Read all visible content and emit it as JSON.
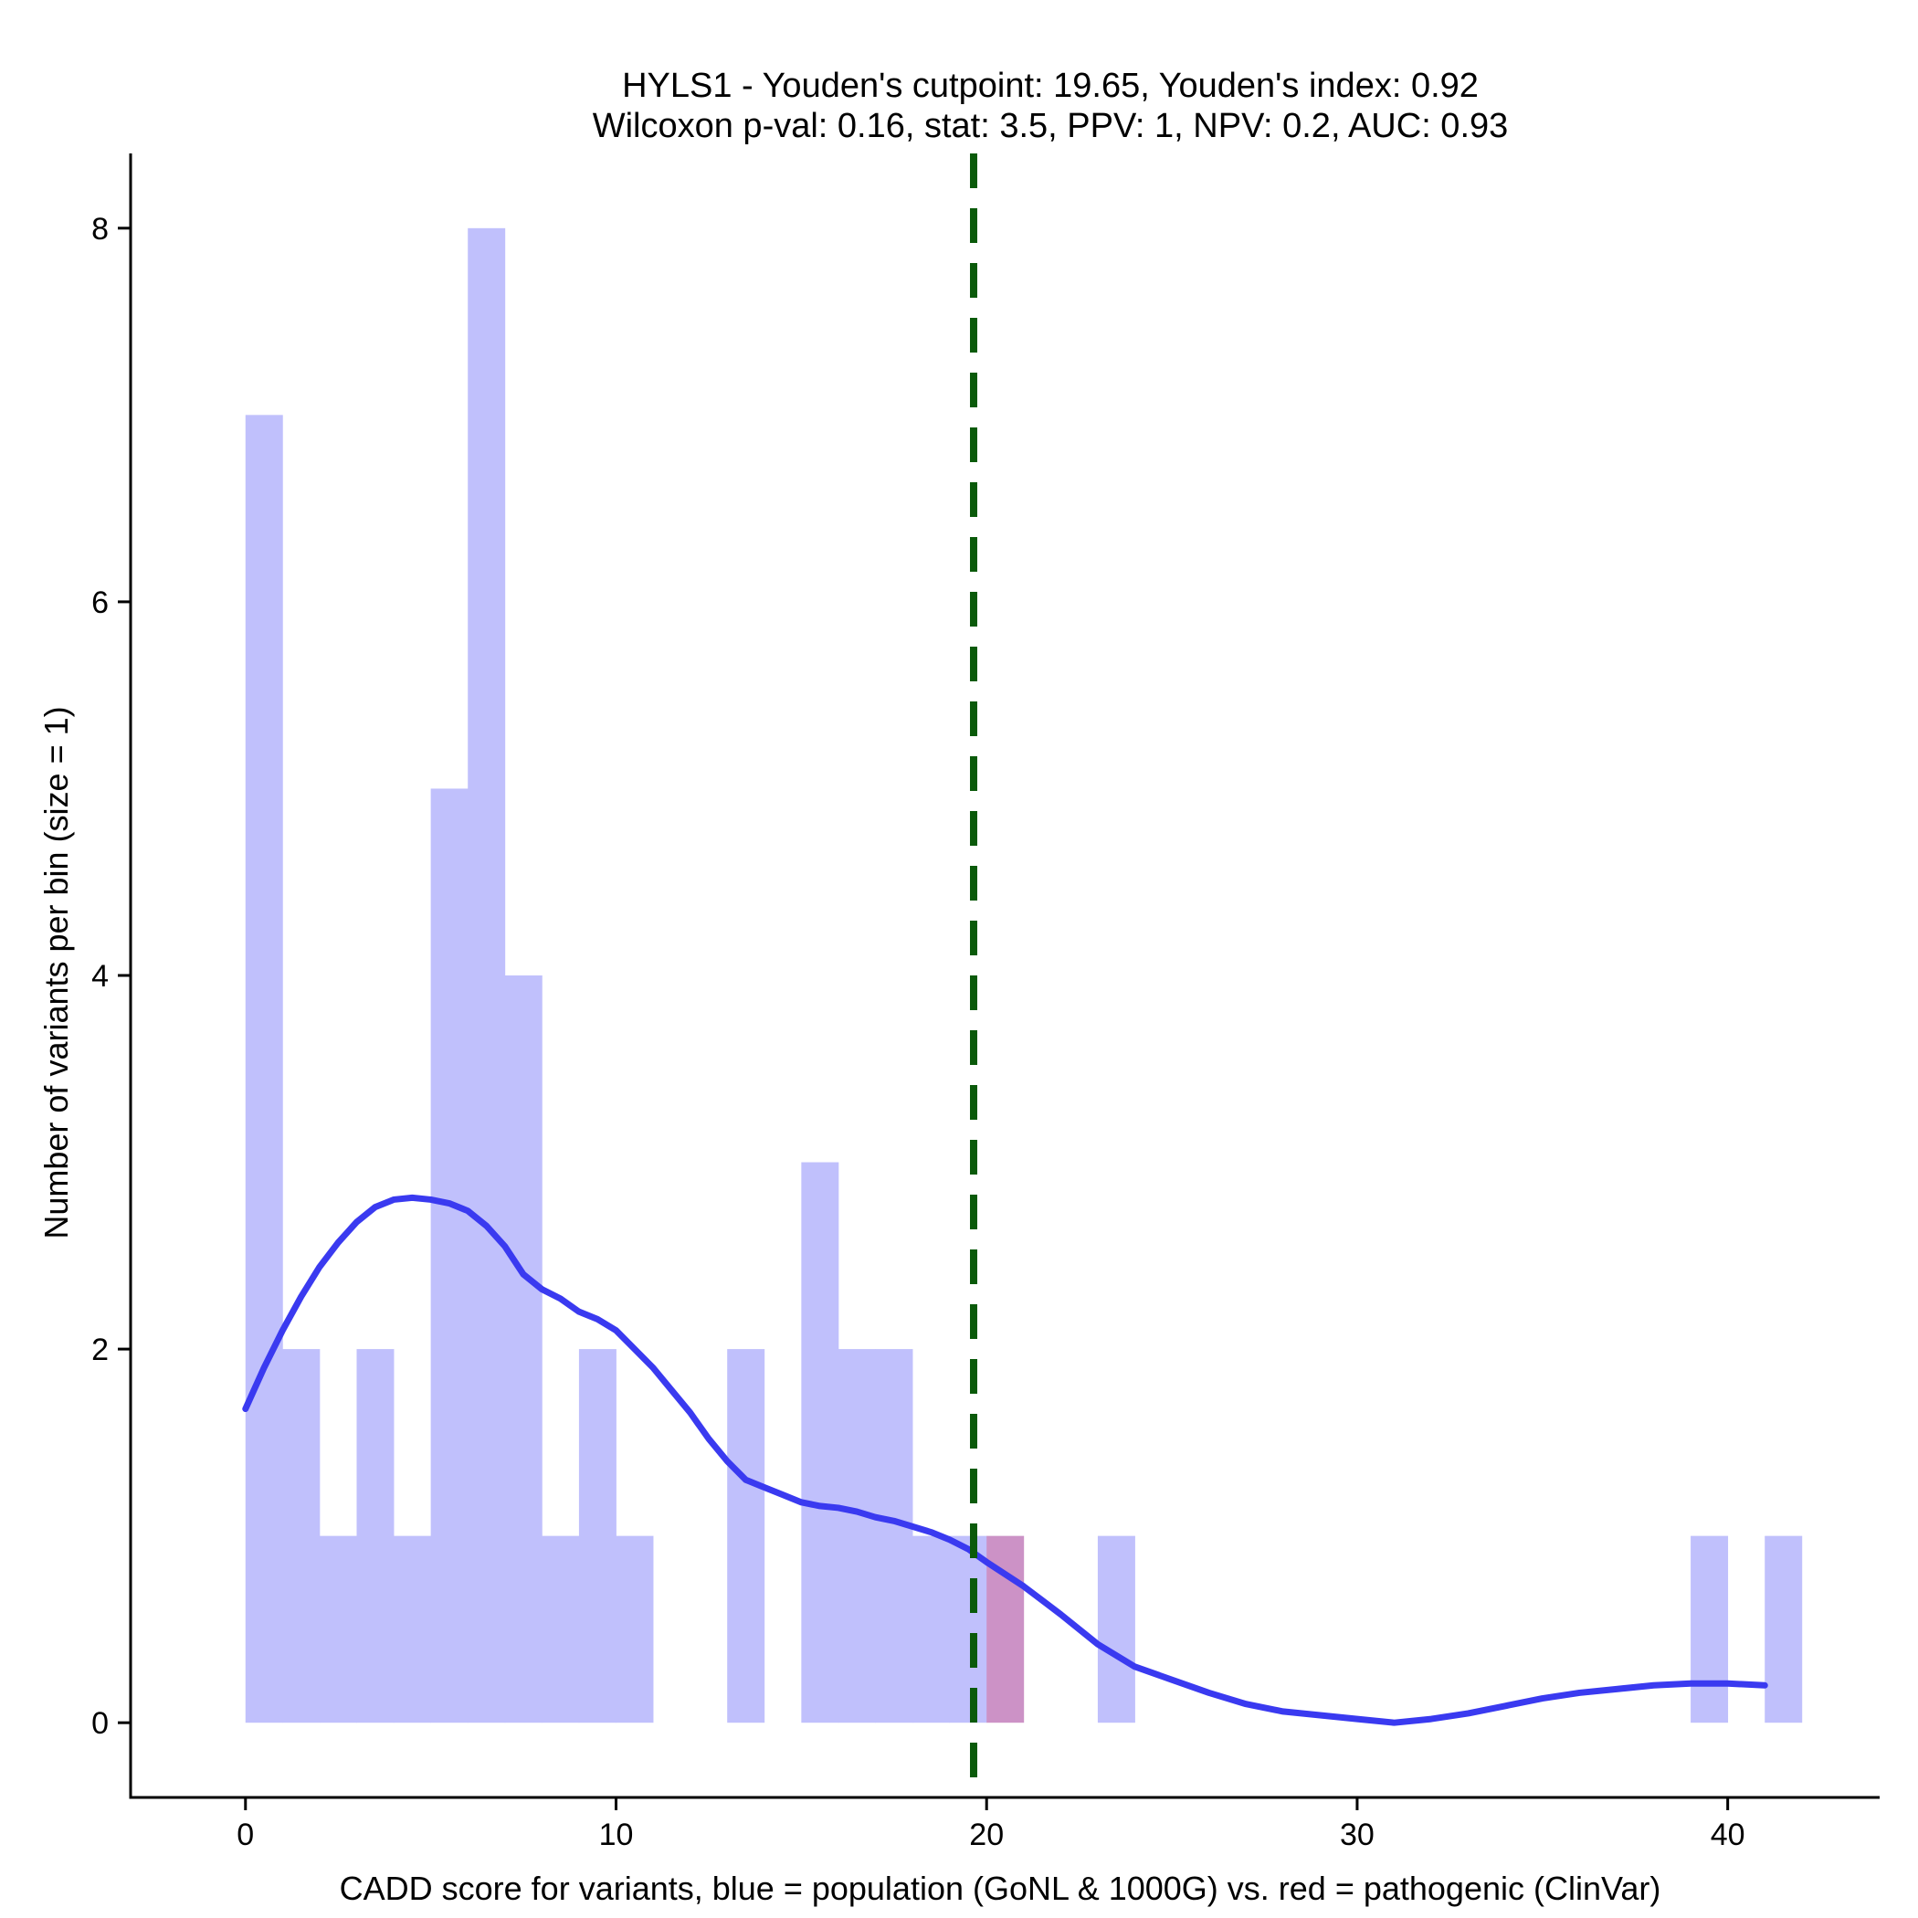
{
  "chart_data": {
    "type": "histogram",
    "title_line1": "HYLS1 - Youden's cutpoint: 19.65, Youden's index: 0.92",
    "title_line2": "Wilcoxon p-val: 0.16, stat: 3.5, PPV: 1, NPV: 0.2, AUC: 0.93",
    "xlabel": "CADD score for variants, blue = population (GoNL & 1000G) vs. red = pathogenic (ClinVar)",
    "ylabel": "Number of variants per bin (size = 1)",
    "xlim": [
      -3.1,
      44.1
    ],
    "ylim": [
      -0.4,
      8.4
    ],
    "xticks": [
      0,
      10,
      20,
      30,
      40
    ],
    "yticks": [
      0,
      2,
      4,
      6,
      8
    ],
    "bin_width": 1,
    "cutpoint": 19.65,
    "colors": {
      "population": "#c0c0fc",
      "pathogenic": "#cc92c6",
      "density": "#3a3af0",
      "cutpoint": "#0a5a0a"
    },
    "series": [
      {
        "kind": "population",
        "bins": [
          {
            "x0": 0,
            "count": 7
          },
          {
            "x0": 1,
            "count": 2
          },
          {
            "x0": 2,
            "count": 1
          },
          {
            "x0": 3,
            "count": 2
          },
          {
            "x0": 4,
            "count": 1
          },
          {
            "x0": 5,
            "count": 5
          },
          {
            "x0": 6,
            "count": 8
          },
          {
            "x0": 7,
            "count": 4
          },
          {
            "x0": 8,
            "count": 1
          },
          {
            "x0": 9,
            "count": 2
          },
          {
            "x0": 10,
            "count": 1
          },
          {
            "x0": 13,
            "count": 2
          },
          {
            "x0": 15,
            "count": 3
          },
          {
            "x0": 16,
            "count": 2
          },
          {
            "x0": 17,
            "count": 2
          },
          {
            "x0": 18,
            "count": 1
          },
          {
            "x0": 19,
            "count": 1
          },
          {
            "x0": 23,
            "count": 1
          },
          {
            "x0": 39,
            "count": 1
          },
          {
            "x0": 41,
            "count": 1
          }
        ]
      },
      {
        "kind": "pathogenic",
        "bins": [
          {
            "x0": 20,
            "count": 1
          }
        ]
      }
    ],
    "density_curve": {
      "x": [
        0,
        0.5,
        1,
        1.5,
        2,
        2.5,
        3,
        3.5,
        4,
        4.5,
        5,
        5.5,
        6,
        6.5,
        7,
        7.5,
        8,
        8.5,
        9,
        9.5,
        10,
        10.5,
        11,
        11.5,
        12,
        12.5,
        13,
        13.5,
        14,
        14.5,
        15,
        15.5,
        16,
        16.5,
        17,
        17.5,
        18,
        18.5,
        19,
        19.5,
        20,
        21,
        22,
        23,
        24,
        25,
        26,
        27,
        28,
        29,
        30,
        31,
        32,
        33,
        34,
        35,
        36,
        37,
        38,
        39,
        40,
        41
      ],
      "y": [
        1.68,
        1.9,
        2.1,
        2.28,
        2.44,
        2.57,
        2.68,
        2.76,
        2.8,
        2.81,
        2.8,
        2.78,
        2.74,
        2.66,
        2.55,
        2.4,
        2.32,
        2.27,
        2.2,
        2.16,
        2.1,
        2.0,
        1.9,
        1.78,
        1.66,
        1.52,
        1.4,
        1.3,
        1.26,
        1.22,
        1.18,
        1.16,
        1.15,
        1.13,
        1.1,
        1.08,
        1.05,
        1.02,
        0.98,
        0.93,
        0.86,
        0.73,
        0.58,
        0.42,
        0.3,
        0.23,
        0.16,
        0.1,
        0.06,
        0.04,
        0.02,
        0.0,
        0.02,
        0.05,
        0.09,
        0.13,
        0.16,
        0.18,
        0.2,
        0.21,
        0.21,
        0.2
      ]
    }
  }
}
